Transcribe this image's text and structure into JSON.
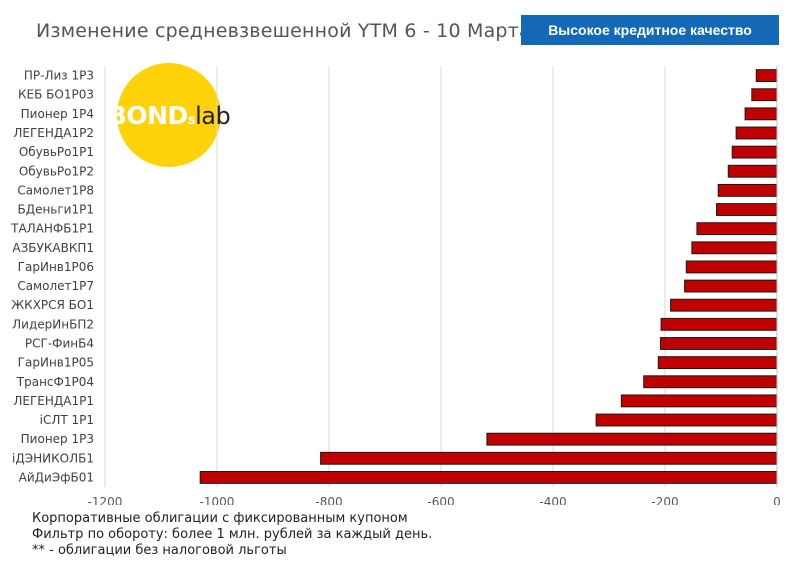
{
  "header": {
    "title": "Изменение средневзвешенной YTM 6 - 10  Марта",
    "badge": "Высокое кредитное качество"
  },
  "logo": {
    "part1": "BOND",
    "part2": "s",
    "part3": "lab"
  },
  "footnotes": [
    "Корпоративные облигации с фиксированным купоном",
    "Фильтр по обороту: более 1 млн. рублей за каждый день.",
    "** - облигации без налоговой льготы"
  ],
  "colors": {
    "bar": "#c00000",
    "badge": "#1469b7",
    "logo": "#ffd20a",
    "grid": "#d9d9d9"
  },
  "chart_data": {
    "type": "bar",
    "orientation": "horizontal",
    "categories": [
      "ПР-Лиз 1Р3",
      "КЕБ БО1Р03",
      "Пионер 1Р4",
      "ЛЕГЕНДА1Р2",
      "ОбувьРо1Р1",
      "ОбувьРо1Р2",
      "Самолет1Р8",
      "БДеньги1Р1",
      "ТАЛАНФБ1Р1",
      "АЗБУКАВКП1",
      "ГарИнв1Р06",
      "Самолет1Р7",
      "ЖКХРСЯ БО1",
      "ЛидерИнБП2",
      "РСГ-ФинБ4",
      "ГарИнв1Р05",
      "ТрансФ1Р04",
      "ЛЕГЕНДА1Р1",
      "iСЛТ 1Р1",
      "Пионер 1Р3",
      "iДЭНИКОЛБ1",
      "АйДиЭфБ01"
    ],
    "values": [
      -37,
      -45,
      -57,
      -73,
      -80,
      -87,
      -105,
      -108,
      -143,
      -152,
      -162,
      -165,
      -190,
      -207,
      -208,
      -212,
      -238,
      -278,
      -323,
      -518,
      -815,
      -1030
    ],
    "xlim": [
      -1200,
      0
    ],
    "xticks": [
      -1200,
      -1000,
      -800,
      -600,
      -400,
      -200,
      0
    ],
    "grid": "vertical"
  }
}
